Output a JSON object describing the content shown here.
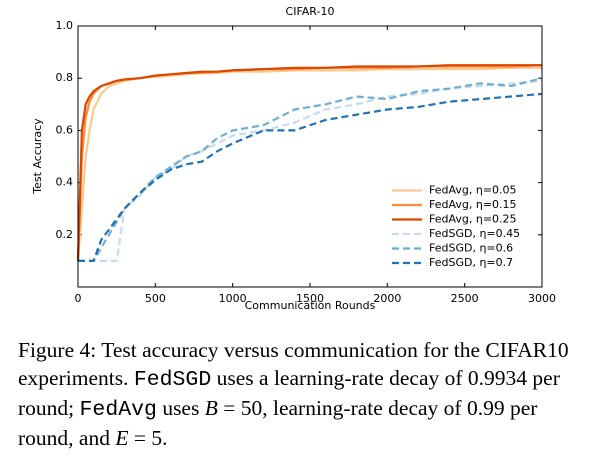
{
  "chart_data": {
    "type": "line",
    "title": "CIFAR-10",
    "x_label": "Communication Rounds",
    "y_label": "Test Accuracy",
    "x": [
      0,
      25,
      50,
      75,
      100,
      150,
      200,
      250,
      300,
      400,
      500,
      600,
      700,
      800,
      900,
      1000,
      1200,
      1400,
      1600,
      1800,
      2000,
      2200,
      2400,
      2600,
      2800,
      3000
    ],
    "series": [
      {
        "name": "FedAvg, η=0.05",
        "color": "#fdc790",
        "linestyle": "solid",
        "values": [
          0.1,
          0.3,
          0.5,
          0.6,
          0.68,
          0.74,
          0.77,
          0.78,
          0.79,
          0.8,
          0.805,
          0.81,
          0.815,
          0.82,
          0.82,
          0.825,
          0.825,
          0.83,
          0.83,
          0.83,
          0.835,
          0.835,
          0.835,
          0.835,
          0.84,
          0.84
        ]
      },
      {
        "name": "FedAvg, η=0.15",
        "color": "#fd8d3c",
        "linestyle": "solid",
        "values": [
          0.1,
          0.5,
          0.65,
          0.71,
          0.74,
          0.77,
          0.78,
          0.79,
          0.795,
          0.8,
          0.81,
          0.815,
          0.82,
          0.82,
          0.825,
          0.83,
          0.835,
          0.835,
          0.84,
          0.84,
          0.84,
          0.845,
          0.845,
          0.845,
          0.845,
          0.85
        ]
      },
      {
        "name": "FedAvg, η=0.25",
        "color": "#d94801",
        "linestyle": "solid",
        "values": [
          0.1,
          0.6,
          0.7,
          0.73,
          0.75,
          0.77,
          0.78,
          0.79,
          0.795,
          0.8,
          0.81,
          0.815,
          0.82,
          0.825,
          0.825,
          0.83,
          0.835,
          0.84,
          0.84,
          0.845,
          0.845,
          0.845,
          0.85,
          0.85,
          0.85,
          0.85
        ]
      },
      {
        "name": "FedSGD, η=0.45",
        "color": "#c6dbef",
        "linestyle": "dashed",
        "values": [
          0.1,
          0.1,
          0.1,
          0.1,
          0.1,
          0.1,
          0.1,
          0.1,
          0.3,
          0.35,
          0.42,
          0.45,
          0.5,
          0.52,
          0.55,
          0.58,
          0.6,
          0.63,
          0.68,
          0.7,
          0.73,
          0.74,
          0.76,
          0.77,
          0.78,
          0.79
        ]
      },
      {
        "name": "FedSGD, η=0.6",
        "color": "#6baed6",
        "linestyle": "dashed",
        "values": [
          0.1,
          0.1,
          0.1,
          0.1,
          0.1,
          0.15,
          0.2,
          0.25,
          0.3,
          0.36,
          0.42,
          0.46,
          0.5,
          0.52,
          0.57,
          0.6,
          0.62,
          0.68,
          0.7,
          0.73,
          0.72,
          0.75,
          0.76,
          0.78,
          0.77,
          0.8
        ]
      },
      {
        "name": "FedSGD, η=0.7",
        "color": "#2171b5",
        "linestyle": "dashed",
        "values": [
          0.1,
          0.1,
          0.1,
          0.1,
          0.1,
          0.18,
          0.22,
          0.26,
          0.3,
          0.36,
          0.41,
          0.45,
          0.47,
          0.48,
          0.52,
          0.55,
          0.6,
          0.6,
          0.64,
          0.66,
          0.68,
          0.69,
          0.71,
          0.72,
          0.73,
          0.74
        ]
      }
    ],
    "xlim": [
      0,
      3000
    ],
    "xticks": [
      0,
      500,
      1000,
      1500,
      2000,
      2500,
      3000
    ],
    "ylim": [
      0,
      1
    ],
    "yticks": [
      0.2,
      0.4,
      0.6,
      0.8,
      {
        "value": 1,
        "label": "1.0"
      }
    ],
    "legend": "lower right",
    "grid": false
  },
  "caption": {
    "parts": [
      "Figure 4: Test accuracy versus communication for the CIFAR10 experiments. ",
      "FedSGD",
      " uses a learning-rate decay of 0.9934 per round; ",
      "FedAvg",
      " uses ",
      "B",
      " = 50, learning-rate decay of 0.99 per round, and ",
      "E",
      " = 5."
    ]
  }
}
